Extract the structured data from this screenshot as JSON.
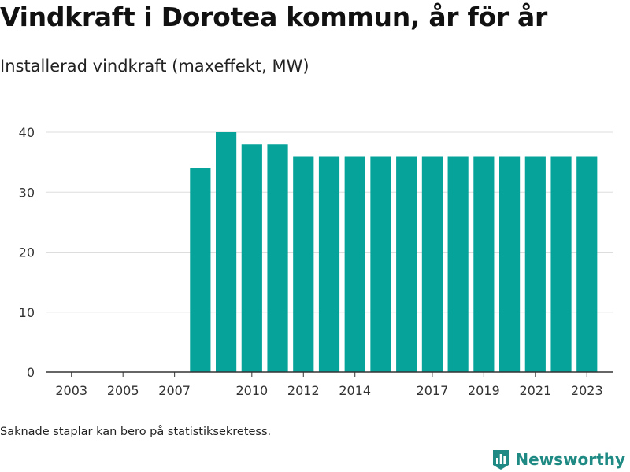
{
  "header": {
    "title": "Vindkraft i Dorotea kommun, år för år",
    "subtitle": "Installerad vindkraft (maxeffekt, MW)"
  },
  "footer": {
    "note": "Saknade staplar kan bero på statistiksekretess.",
    "brand": "Newsworthy",
    "brand_icon": "newsworthy-logo-icon"
  },
  "colors": {
    "bar": "#05a39a",
    "brand": "#1f8a83",
    "grid": "#dddddd",
    "axis": "#333333"
  },
  "chart_data": {
    "type": "bar",
    "x": [
      2008,
      2009,
      2010,
      2011,
      2012,
      2013,
      2014,
      2015,
      2016,
      2017,
      2018,
      2019,
      2020,
      2021,
      2022,
      2023
    ],
    "values": [
      34,
      40,
      38,
      38,
      36,
      36,
      36,
      36,
      36,
      36,
      36,
      36,
      36,
      36,
      36,
      36
    ],
    "xlim": [
      2002,
      2024
    ],
    "ylim": [
      0,
      40
    ],
    "x_ticks": [
      2003,
      2005,
      2007,
      2010,
      2012,
      2014,
      2017,
      2019,
      2021,
      2023
    ],
    "y_ticks": [
      0,
      10,
      20,
      30,
      40
    ],
    "title": "Vindkraft i Dorotea kommun, år för år",
    "subtitle": "Installerad vindkraft (maxeffekt, MW)",
    "xlabel": "",
    "ylabel": "",
    "grid": true,
    "legend": "none"
  }
}
